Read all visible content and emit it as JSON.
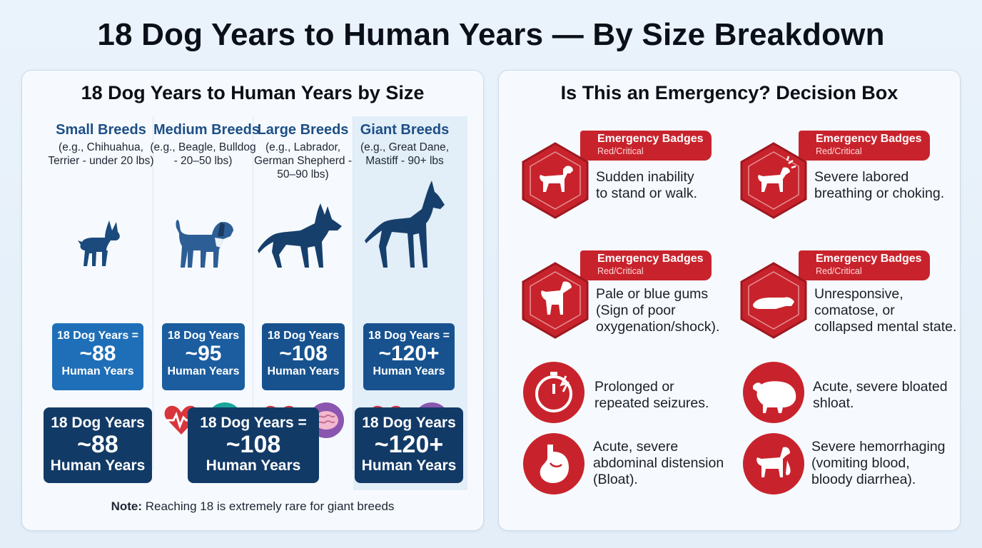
{
  "title": "18 Dog Years to Human Years — By Size Breakdown",
  "left_panel": {
    "title": "18 Dog Years to Human Years by Size",
    "columns": [
      {
        "header": "Small Breeds",
        "desc": "(e.g., Chihuahua, Terrier - under 20 lbs)",
        "box": {
          "l1": "18 Dog Years =",
          "l2": "~88",
          "l3": "Human Years"
        }
      },
      {
        "header": "Medium Breeds",
        "desc": "(e.g., Beagle, Bulldog - 20–50 lbs)",
        "box": {
          "l1": "18 Dog Years",
          "l2": "~95",
          "l3": "Human Years"
        }
      },
      {
        "header": "Large Breeds",
        "desc": "(e.g., Labrador, German Shepherd - 50–90 lbs)",
        "box": {
          "l1": "18 Dog Years",
          "l2": "~108",
          "l3": "Human Years"
        }
      },
      {
        "header": "Giant Breeds",
        "desc": "(e.g., Great Dane, Mastiff - 90+ lbs",
        "box": {
          "l1": "18 Dog Years =",
          "l2": "~120+",
          "l3": "Human Years"
        }
      }
    ],
    "summary": [
      {
        "l1": "18 Dog Years",
        "l2": "~88",
        "l3": "Human Years"
      },
      {
        "l1": "18 Dog Years =",
        "l2": "~108",
        "l3": "Human Years"
      },
      {
        "l1": "18 Dog Years",
        "l2": "~120+",
        "l3": "Human Years"
      }
    ],
    "note_label": "Note:",
    "note_text": " Reaching 18 is extremely rare for giant breeds"
  },
  "right_panel": {
    "title": "Is This an Emergency? Decision Box",
    "badges": [
      {
        "ribbon_title": "Emergency Badges",
        "ribbon_sub": "Red/Critical",
        "text_lines": [
          "Sudden inability",
          "to stand or walk."
        ],
        "icon": "dog-walking-icon"
      },
      {
        "ribbon_title": "Emergency Badges",
        "ribbon_sub": "Red/Critical",
        "text_lines": [
          "Severe labored",
          "breathing or choking."
        ],
        "icon": "dog-choking-icon"
      },
      {
        "ribbon_title": "Emergency Badges",
        "ribbon_sub": "Red/Critical",
        "text_lines": [
          "Pale or blue gums",
          "(Sign of poor",
          "oxygenation/shock)."
        ],
        "icon": "dog-sitting-icon"
      },
      {
        "ribbon_title": "Emergency Badges",
        "ribbon_sub": "Red/Critical",
        "text_lines": [
          "Unresponsive,",
          "comatose, or",
          "collapsed mental state."
        ],
        "icon": "dog-collapsed-icon"
      }
    ],
    "circles": [
      {
        "text_lines": [
          "Prolonged or",
          "repeated seizures."
        ],
        "icon": "seizure-timer-icon"
      },
      {
        "text_lines": [
          "Acute, severe bloated",
          "shloat."
        ],
        "icon": "bloated-dog-icon"
      },
      {
        "text_lines": [
          "Acute, severe",
          "abdominal distension",
          "(Bloat)."
        ],
        "icon": "stomach-icon"
      },
      {
        "text_lines": [
          "Severe hemorrhaging",
          "(vomiting blood,",
          "bloody diarrhea)."
        ],
        "icon": "vomiting-dog-icon"
      }
    ]
  },
  "colors": {
    "emergency_red": "#c8232c",
    "breed_blue": "#1d4f86",
    "summary_navy": "#123a66"
  }
}
